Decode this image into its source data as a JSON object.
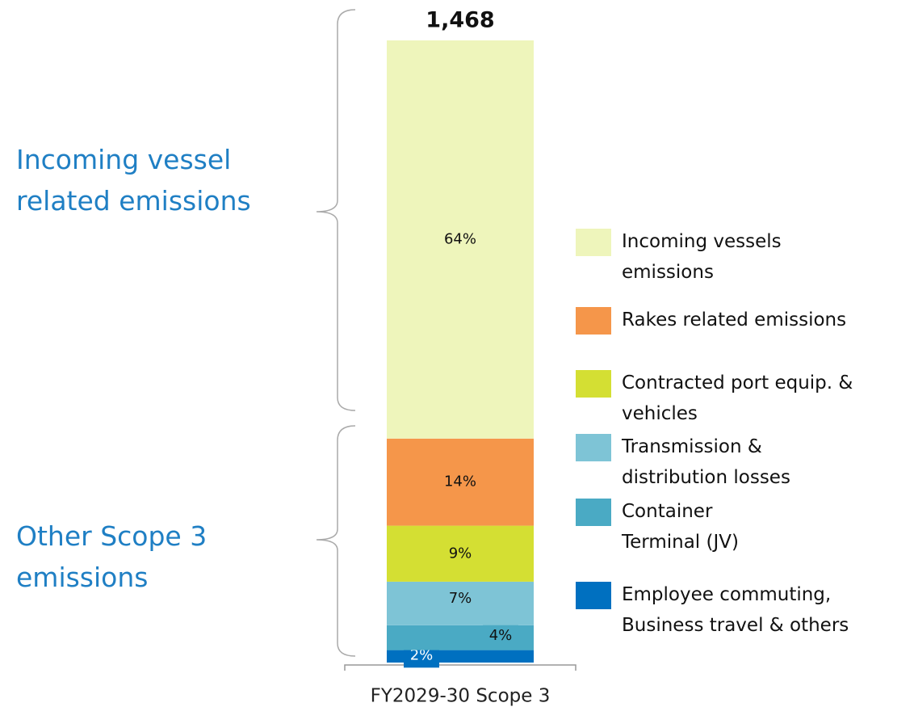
{
  "chart_data": {
    "type": "stacked_bar",
    "categories": [
      "FY2029-30 Scope 3"
    ],
    "total": {
      "value": 1468,
      "label": "1,468"
    },
    "annotations": [
      "Incoming vessel related emissions",
      "Other Scope 3 emissions"
    ],
    "series": [
      {
        "name": "Incoming vessels emissions",
        "color": "#eef5bb",
        "values": [
          64
        ],
        "value_labels": [
          "64%"
        ]
      },
      {
        "name": "Rakes related emissions",
        "color": "#f5964a",
        "values": [
          14
        ],
        "value_labels": [
          "14%"
        ]
      },
      {
        "name": "Contracted port equip. & vehicles",
        "color": "#d4df33",
        "values": [
          9
        ],
        "value_labels": [
          "9%"
        ]
      },
      {
        "name": "Transmission & distribution losses",
        "color": "#7ec4d6",
        "values": [
          7
        ],
        "value_labels": [
          "7%"
        ]
      },
      {
        "name": "Container Terminal (JV)",
        "color": "#4aaac4",
        "values": [
          4
        ],
        "value_labels": [
          "4%"
        ]
      },
      {
        "name": "Employee commuting, Business travel & others",
        "color": "#0070c0",
        "values": [
          2
        ],
        "value_labels": [
          "2%"
        ]
      }
    ]
  }
}
